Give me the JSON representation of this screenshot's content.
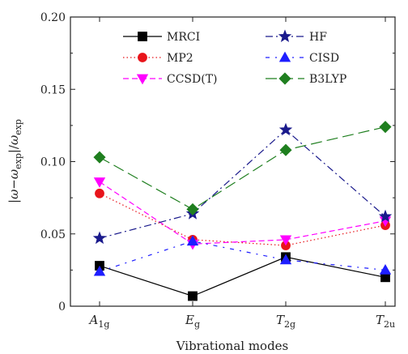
{
  "chart_data": {
    "type": "line",
    "xlabel": "Vibrational modes",
    "ylabel": "|ω−ω_exp|/ω_exp",
    "categories": [
      "A1g",
      "Eg",
      "T2g",
      "T2u"
    ],
    "category_labels": [
      {
        "base": "A",
        "sub": "1g"
      },
      {
        "base": "E",
        "sub": "g"
      },
      {
        "base": "T",
        "sub": "2g"
      },
      {
        "base": "T",
        "sub": "2u"
      }
    ],
    "ylim": [
      0,
      0.2
    ],
    "yticks": [
      "0",
      "0.05",
      "0.10",
      "0.15",
      "0.20"
    ],
    "ytick_values": [
      0,
      0.05,
      0.1,
      0.15,
      0.2
    ],
    "grid": false,
    "legend_position": "top",
    "series": [
      {
        "name": "MRCI",
        "values": [
          0.028,
          0.007,
          0.034,
          0.02
        ],
        "color": "#000000",
        "marker": "square",
        "dash": "solid"
      },
      {
        "name": "MP2",
        "values": [
          0.078,
          0.046,
          0.042,
          0.056
        ],
        "color": "#e8141b",
        "marker": "circle",
        "dash": "dot"
      },
      {
        "name": "CCSD(T)",
        "values": [
          0.086,
          0.043,
          0.046,
          0.059
        ],
        "color": "#ff00ff",
        "marker": "triangle-down",
        "dash": "dash"
      },
      {
        "name": "HF",
        "values": [
          0.047,
          0.064,
          0.122,
          0.062
        ],
        "color": "#1a1a8c",
        "marker": "star",
        "dash": "dashdot"
      },
      {
        "name": "CISD",
        "values": [
          0.024,
          0.045,
          0.032,
          0.025
        ],
        "color": "#1e1eff",
        "marker": "triangle-up",
        "dash": "dashdot-sparse"
      },
      {
        "name": "B3LYP",
        "values": [
          0.103,
          0.067,
          0.108,
          0.124
        ],
        "color": "#1f7f1f",
        "marker": "diamond",
        "dash": "longdash"
      }
    ]
  }
}
